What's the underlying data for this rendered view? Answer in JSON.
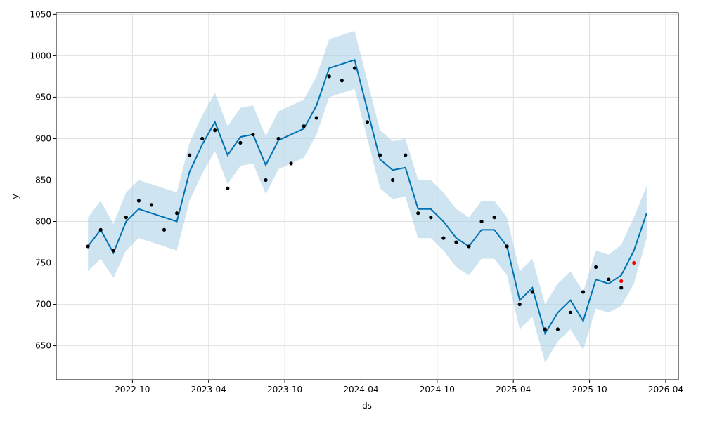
{
  "chart_data": {
    "type": "forecast",
    "xlabel": "ds",
    "ylabel": "y",
    "xlim": [
      "2022-04",
      "2026-05"
    ],
    "ylim": [
      609,
      1052
    ],
    "xticks": [
      "2022-10",
      "2023-04",
      "2023-10",
      "2024-04",
      "2024-10",
      "2025-04",
      "2025-10",
      "2026-04"
    ],
    "yticks": [
      650,
      700,
      750,
      800,
      850,
      900,
      950,
      1000,
      1050
    ],
    "grid": true,
    "band": {
      "color": "#a6cde6",
      "x": [
        "2022-06",
        "2022-07",
        "2022-08",
        "2022-09",
        "2022-10",
        "2022-11",
        "2022-12",
        "2023-01",
        "2023-02",
        "2023-03",
        "2023-04",
        "2023-05",
        "2023-06",
        "2023-07",
        "2023-08",
        "2023-09",
        "2023-10",
        "2023-11",
        "2023-12",
        "2024-01",
        "2024-02",
        "2024-03",
        "2024-04",
        "2024-05",
        "2024-06",
        "2024-07",
        "2024-08",
        "2024-09",
        "2024-10",
        "2024-11",
        "2024-12",
        "2025-01",
        "2025-02",
        "2025-03",
        "2025-04",
        "2025-05",
        "2025-06",
        "2025-07",
        "2025-08",
        "2025-09",
        "2025-10",
        "2025-11",
        "2025-12",
        "2026-01",
        "2026-02"
      ],
      "lower": [
        740,
        755,
        732,
        765,
        780,
        775,
        770,
        765,
        825,
        858,
        885,
        845,
        867,
        870,
        833,
        863,
        870,
        877,
        905,
        950,
        955,
        960,
        900,
        840,
        827,
        830,
        780,
        780,
        765,
        745,
        735,
        755,
        755,
        735,
        670,
        685,
        630,
        655,
        670,
        645,
        695,
        690,
        698,
        725,
        780
      ],
      "upper": [
        805,
        825,
        797,
        835,
        850,
        845,
        840,
        835,
        895,
        928,
        955,
        915,
        937,
        940,
        903,
        933,
        940,
        947,
        975,
        1020,
        1025,
        1030,
        970,
        910,
        897,
        900,
        850,
        850,
        835,
        815,
        805,
        825,
        825,
        805,
        740,
        755,
        700,
        725,
        740,
        715,
        765,
        760,
        772,
        805,
        843
      ]
    },
    "forecast": {
      "color": "#0072b2",
      "x": [
        "2022-06",
        "2022-07",
        "2022-08",
        "2022-09",
        "2022-10",
        "2022-11",
        "2022-12",
        "2023-01",
        "2023-02",
        "2023-03",
        "2023-04",
        "2023-05",
        "2023-06",
        "2023-07",
        "2023-08",
        "2023-09",
        "2023-10",
        "2023-11",
        "2023-12",
        "2024-01",
        "2024-02",
        "2024-03",
        "2024-04",
        "2024-05",
        "2024-06",
        "2024-07",
        "2024-08",
        "2024-09",
        "2024-10",
        "2024-11",
        "2024-12",
        "2025-01",
        "2025-02",
        "2025-03",
        "2025-04",
        "2025-05",
        "2025-06",
        "2025-07",
        "2025-08",
        "2025-09",
        "2025-10",
        "2025-11",
        "2025-12",
        "2026-01",
        "2026-02"
      ],
      "values": [
        770,
        790,
        762,
        800,
        815,
        810,
        805,
        800,
        860,
        893,
        920,
        880,
        902,
        905,
        868,
        898,
        905,
        912,
        940,
        985,
        990,
        995,
        935,
        875,
        862,
        865,
        815,
        815,
        800,
        780,
        770,
        790,
        790,
        770,
        705,
        720,
        665,
        690,
        705,
        680,
        730,
        725,
        735,
        765,
        810
      ]
    },
    "observed": {
      "color": "#000000",
      "x": [
        "2022-06",
        "2022-07",
        "2022-08",
        "2022-09",
        "2022-10",
        "2022-11",
        "2022-12",
        "2023-01",
        "2023-02",
        "2023-03",
        "2023-04",
        "2023-05",
        "2023-06",
        "2023-07",
        "2023-08",
        "2023-09",
        "2023-10",
        "2023-11",
        "2023-12",
        "2024-01",
        "2024-02",
        "2024-03",
        "2024-04",
        "2024-05",
        "2024-06",
        "2024-07",
        "2024-08",
        "2024-09",
        "2024-10",
        "2024-11",
        "2024-12",
        "2025-01",
        "2025-02",
        "2025-03",
        "2025-04",
        "2025-05",
        "2025-06",
        "2025-07",
        "2025-08",
        "2025-09",
        "2025-10",
        "2025-11",
        "2025-12"
      ],
      "values": [
        770,
        790,
        765,
        805,
        825,
        820,
        790,
        810,
        880,
        900,
        910,
        840,
        895,
        905,
        850,
        900,
        870,
        915,
        925,
        975,
        970,
        985,
        920,
        880,
        850,
        880,
        810,
        805,
        780,
        775,
        770,
        800,
        805,
        770,
        700,
        715,
        670,
        670,
        690,
        715,
        745,
        730,
        720
      ]
    },
    "test": {
      "color": "#ff0000",
      "x": [
        "2025-12",
        "2026-01"
      ],
      "values": [
        728,
        750
      ]
    }
  }
}
